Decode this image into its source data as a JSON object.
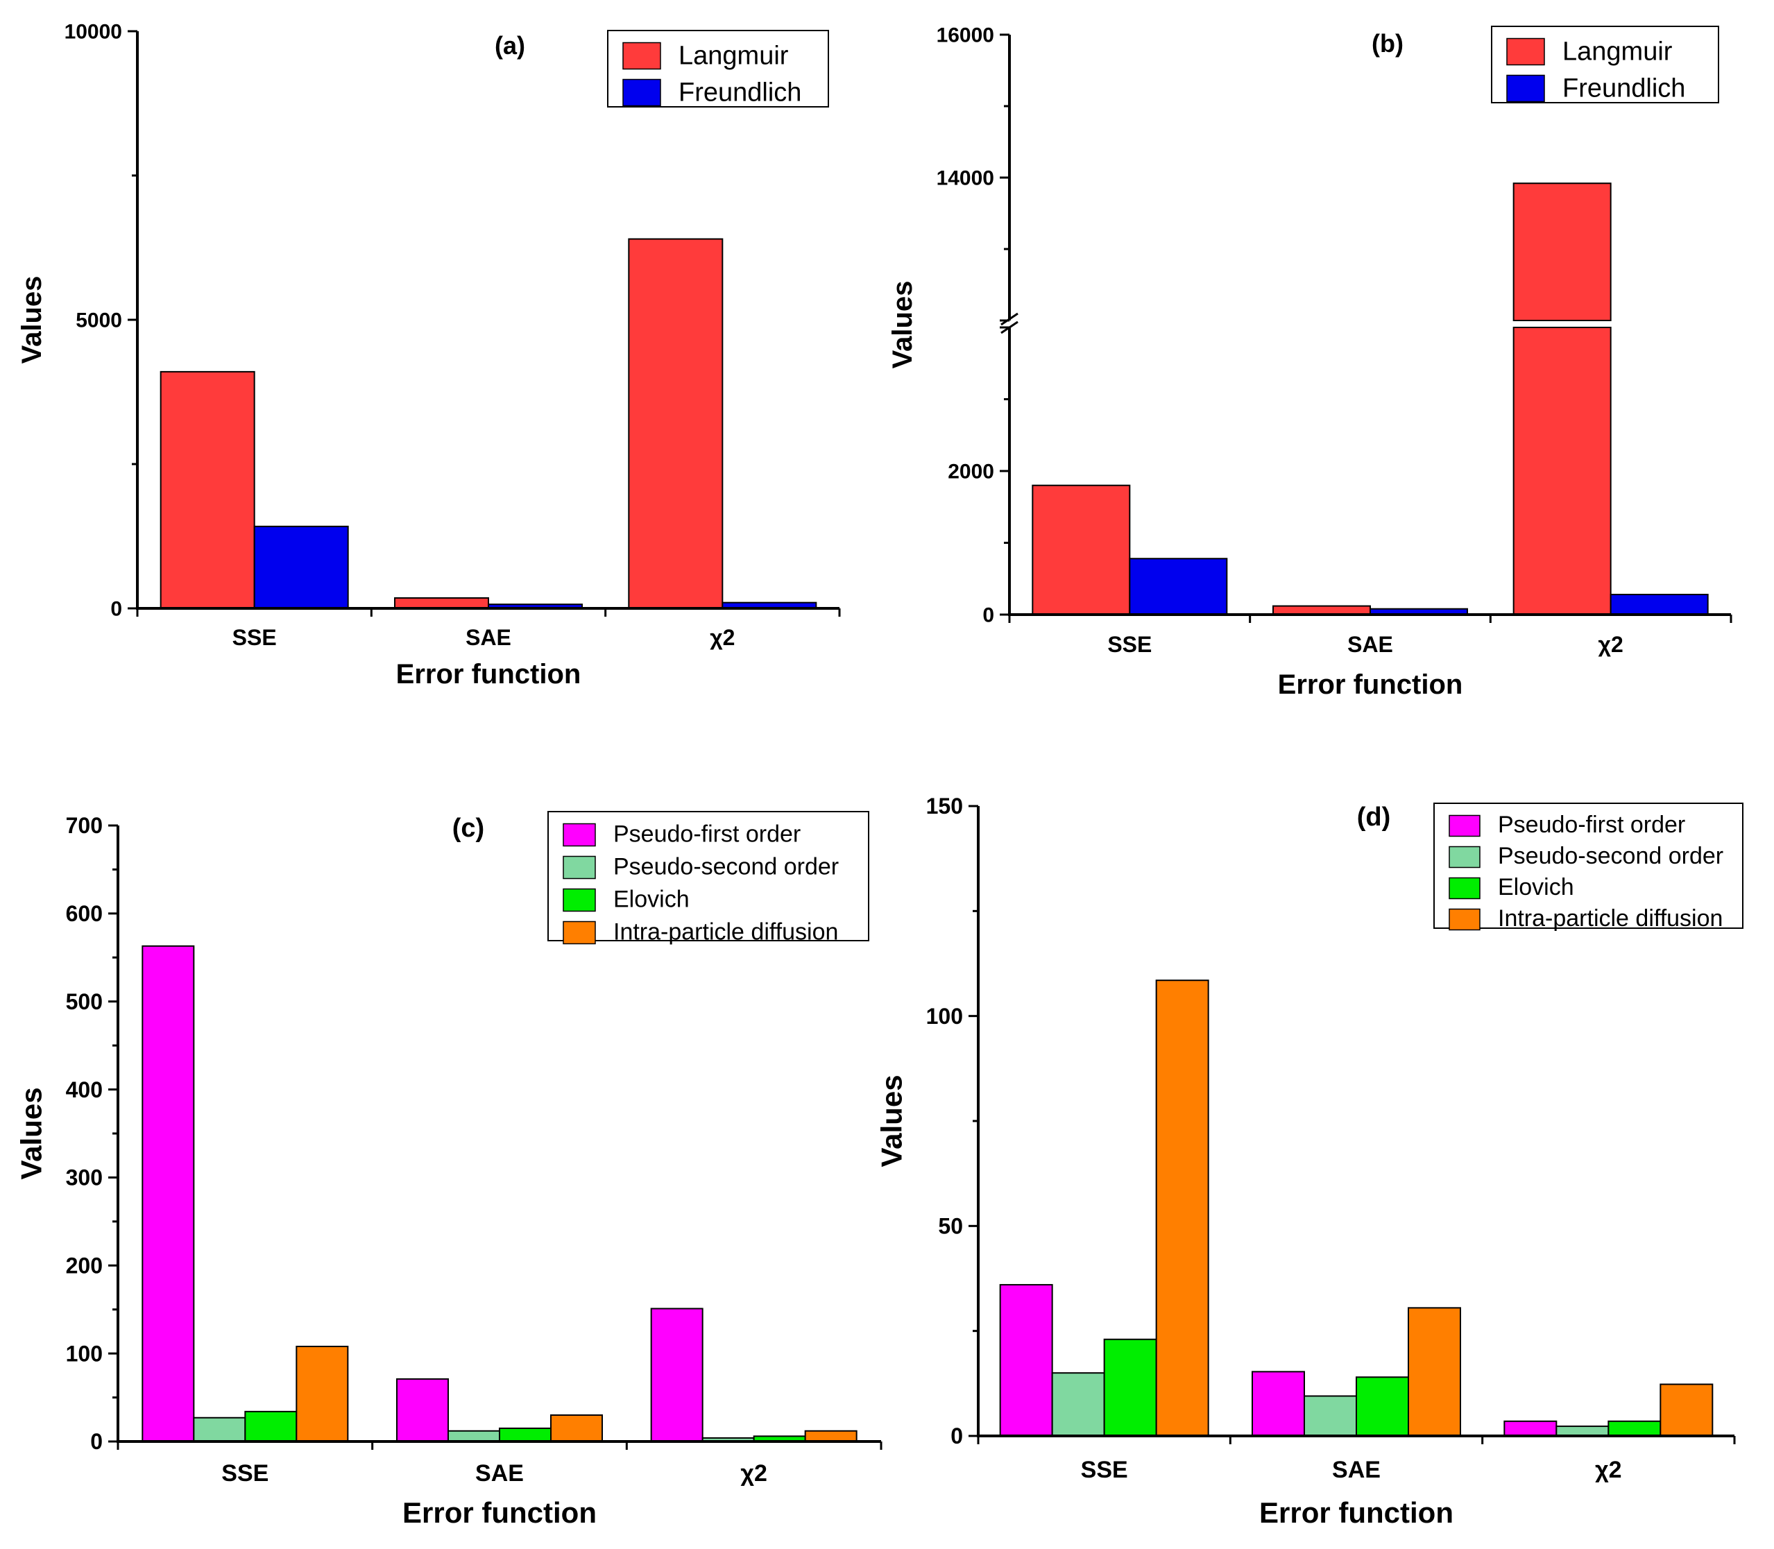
{
  "chart_data": [
    {
      "id": "a",
      "type": "bar",
      "label": "(a)",
      "categories": [
        "SSE",
        "SAE",
        "χ2"
      ],
      "series": [
        {
          "name": "Langmuir",
          "color": "#ff3b3b",
          "values": [
            4100,
            180,
            6400
          ]
        },
        {
          "name": "Freundlich",
          "color": "#0000ee",
          "values": [
            1420,
            70,
            100
          ]
        }
      ],
      "xlabel": "Error function",
      "ylabel": "Values",
      "ylim": [
        0,
        10000
      ],
      "yticks": [
        0,
        5000,
        10000
      ],
      "legend_position": "top-right"
    },
    {
      "id": "b",
      "type": "bar",
      "label": "(b)",
      "categories": [
        "SSE",
        "SAE",
        "χ2"
      ],
      "series": [
        {
          "name": "Langmuir",
          "color": "#ff3b3b",
          "values": [
            1800,
            120,
            13920
          ]
        },
        {
          "name": "Freundlich",
          "color": "#0000ee",
          "values": [
            780,
            80,
            280
          ]
        }
      ],
      "xlabel": "Error function",
      "ylabel": "Values",
      "axis_break": true,
      "ylim_lower": [
        0,
        4000
      ],
      "ylim_upper": [
        12000,
        16000
      ],
      "yticks": [
        0,
        2000,
        14000,
        16000
      ],
      "legend_position": "top-right"
    },
    {
      "id": "c",
      "type": "bar",
      "label": "(c)",
      "categories": [
        "SSE",
        "SAE",
        "χ2"
      ],
      "series": [
        {
          "name": "Pseudo-first order",
          "color": "#ff00ff",
          "values": [
            563,
            71,
            151
          ]
        },
        {
          "name": "Pseudo-second order",
          "color": "#80d8a0",
          "values": [
            27,
            12,
            4
          ]
        },
        {
          "name": "Elovich",
          "color": "#00ee00",
          "values": [
            34,
            15,
            6
          ]
        },
        {
          "name": "Intra-particle diffusion",
          "color": "#ff7f00",
          "values": [
            108,
            30,
            12
          ]
        }
      ],
      "xlabel": "Error function",
      "ylabel": "Values",
      "ylim": [
        0,
        700
      ],
      "yticks": [
        0,
        100,
        200,
        300,
        400,
        500,
        600,
        700
      ],
      "legend_position": "top-right"
    },
    {
      "id": "d",
      "type": "bar",
      "label": "(d)",
      "categories": [
        "SSE",
        "SAE",
        "χ2"
      ],
      "series": [
        {
          "name": "Pseudo-first order",
          "color": "#ff00ff",
          "values": [
            36,
            15.3,
            3.5
          ]
        },
        {
          "name": "Pseudo-second order",
          "color": "#80d8a0",
          "values": [
            15,
            9.5,
            2.3
          ]
        },
        {
          "name": "Elovich",
          "color": "#00ee00",
          "values": [
            23,
            14,
            3.5
          ]
        },
        {
          "name": "Intra-particle diffusion",
          "color": "#ff7f00",
          "values": [
            108.5,
            30.5,
            12.3
          ]
        }
      ],
      "xlabel": "Error function",
      "ylabel": "Values",
      "ylim": [
        0,
        150
      ],
      "yticks": [
        0,
        50,
        100,
        150
      ],
      "legend_position": "top-right"
    }
  ]
}
